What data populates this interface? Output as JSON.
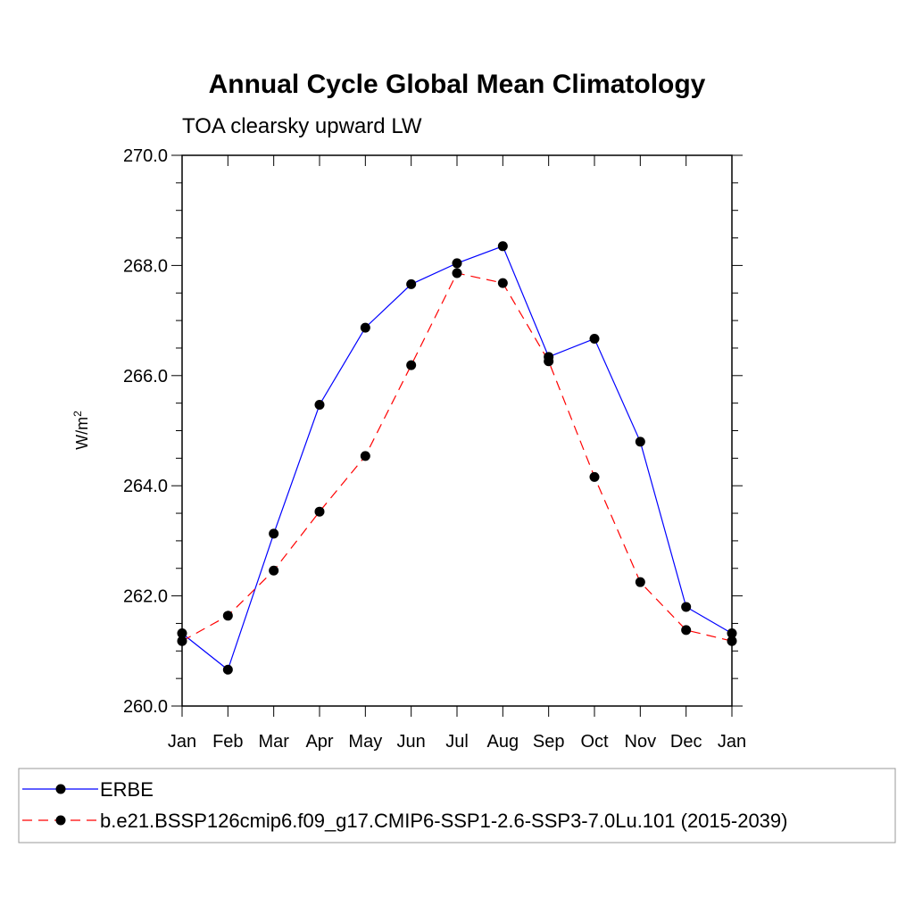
{
  "chart_data": {
    "type": "line",
    "title": "Annual Cycle Global Mean Climatology",
    "subtitle": "TOA clearsky upward LW",
    "ylabel": "W/m",
    "ylabel_superscript": "2",
    "ylim": [
      260.0,
      270.0
    ],
    "y_ticks": [
      "260.0",
      "262.0",
      "264.0",
      "266.0",
      "268.0",
      "270.0"
    ],
    "x_tick_labels": [
      "Jan",
      "Feb",
      "Mar",
      "Apr",
      "May",
      "Jun",
      "Jul",
      "Aug",
      "Sep",
      "Oct",
      "Nov",
      "Dec",
      "Jan"
    ],
    "series": [
      {
        "name": "ERBE",
        "color": "#0000ff",
        "line_style": "solid",
        "marker": "filled-circle",
        "values": [
          261.32,
          260.66,
          263.13,
          265.47,
          266.87,
          267.66,
          268.04,
          268.35,
          266.34,
          266.67,
          264.8,
          261.8,
          261.32
        ]
      },
      {
        "name": "b.e21.BSSP126cmip6.f09_g17.CMIP6-SSP1-2.6-SSP3-7.0Lu.101 (2015-2039)",
        "color": "#ff0000",
        "line_style": "dashed",
        "marker": "filled-circle",
        "values": [
          261.18,
          261.64,
          262.46,
          263.53,
          264.54,
          266.19,
          267.86,
          267.68,
          266.26,
          264.16,
          262.25,
          261.38,
          261.18
        ]
      }
    ]
  }
}
